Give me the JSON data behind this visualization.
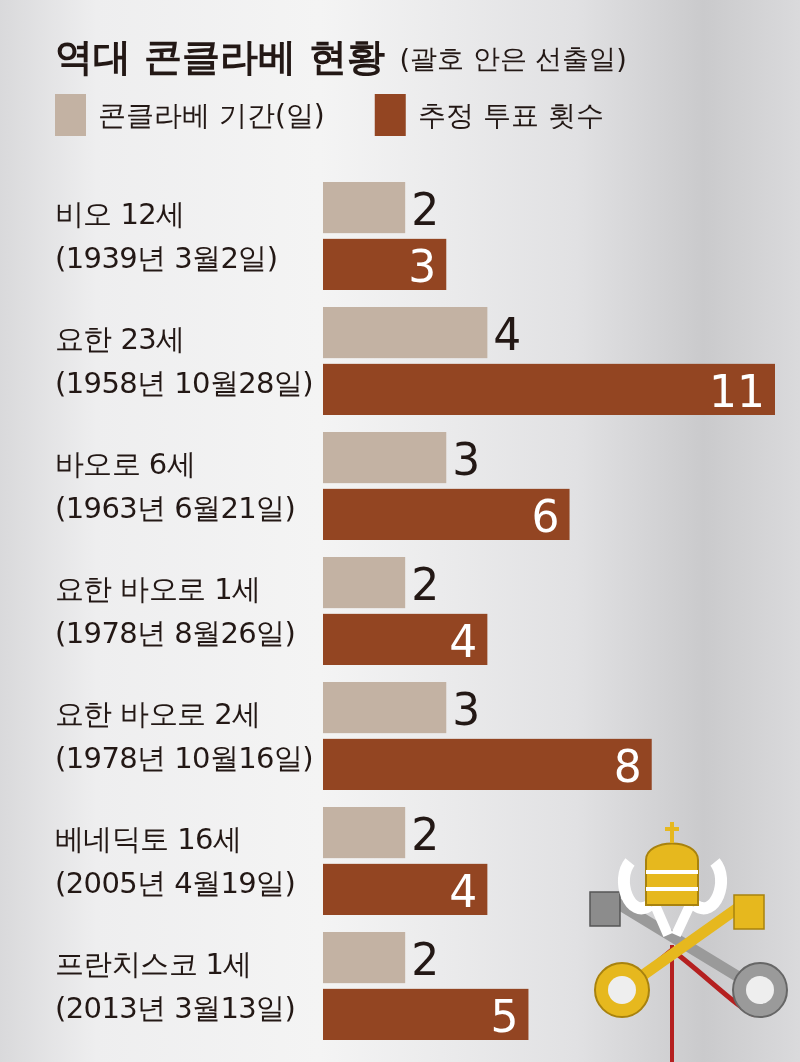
{
  "chart_data": {
    "type": "bar",
    "orientation": "horizontal",
    "title": "역대 콘클라베 현황",
    "subtitle": "(괄호 안은 선출일)",
    "categories": [
      "비오 12세\n(1939년 3월2일)",
      "요한 23세\n(1958년 10월28일)",
      "바오로 6세\n(1963년 6월21일)",
      "요한 바오로 1세\n(1978년 8월26일)",
      "요한 바오로 2세\n(1978년 10월16일)",
      "베네딕토 16세\n(2005년 4월19일)",
      "프란치스코 1세\n(2013년 3월13일)"
    ],
    "series": [
      {
        "name": "콘클라베 기간(일)",
        "color": "#c3b2a3",
        "values": [
          2,
          4,
          3,
          2,
          3,
          2,
          2
        ]
      },
      {
        "name": "추정 투표 횟수",
        "color": "#934522",
        "values": [
          3,
          11,
          6,
          4,
          8,
          4,
          5
        ]
      }
    ],
    "xlim": [
      0,
      11
    ],
    "data_labels": true,
    "legend": "top left",
    "tick_labels": "y"
  }
}
